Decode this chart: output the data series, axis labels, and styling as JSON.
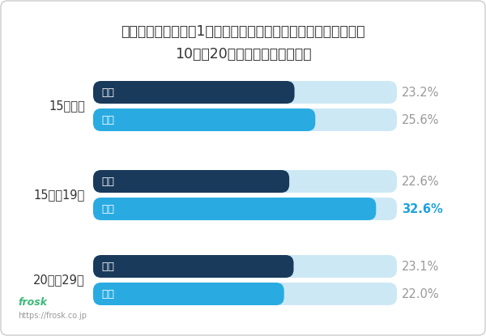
{
  "title_line1": "くそアプリ認定要因1位を「強制終了したり固まる」と回答した",
  "title_line2": "10代、20代の年齢別・性別割合",
  "groups": [
    "15歳未満",
    "15歳〜19歳",
    "20歳〜29歳"
  ],
  "categories": [
    "男性",
    "女性"
  ],
  "values": [
    [
      23.2,
      25.6
    ],
    [
      22.6,
      32.6
    ],
    [
      23.1,
      22.0
    ]
  ],
  "max_value": 35.0,
  "bar_color_male": "#1a3a5c",
  "bar_color_female": "#29abe2",
  "bar_bg_color": "#cde8f5",
  "label_color_normal": "#999999",
  "label_color_highlight": "#1da1e0",
  "highlight_group": 1,
  "highlight_category": 1,
  "background_color": "#ffffff",
  "title_fontsize": 12.5,
  "label_fontsize": 10.5,
  "category_fontsize": 9.5,
  "group_label_fontsize": 10.5,
  "frosk_url": "https://frosk.co.jp",
  "border_color": "#cccccc"
}
